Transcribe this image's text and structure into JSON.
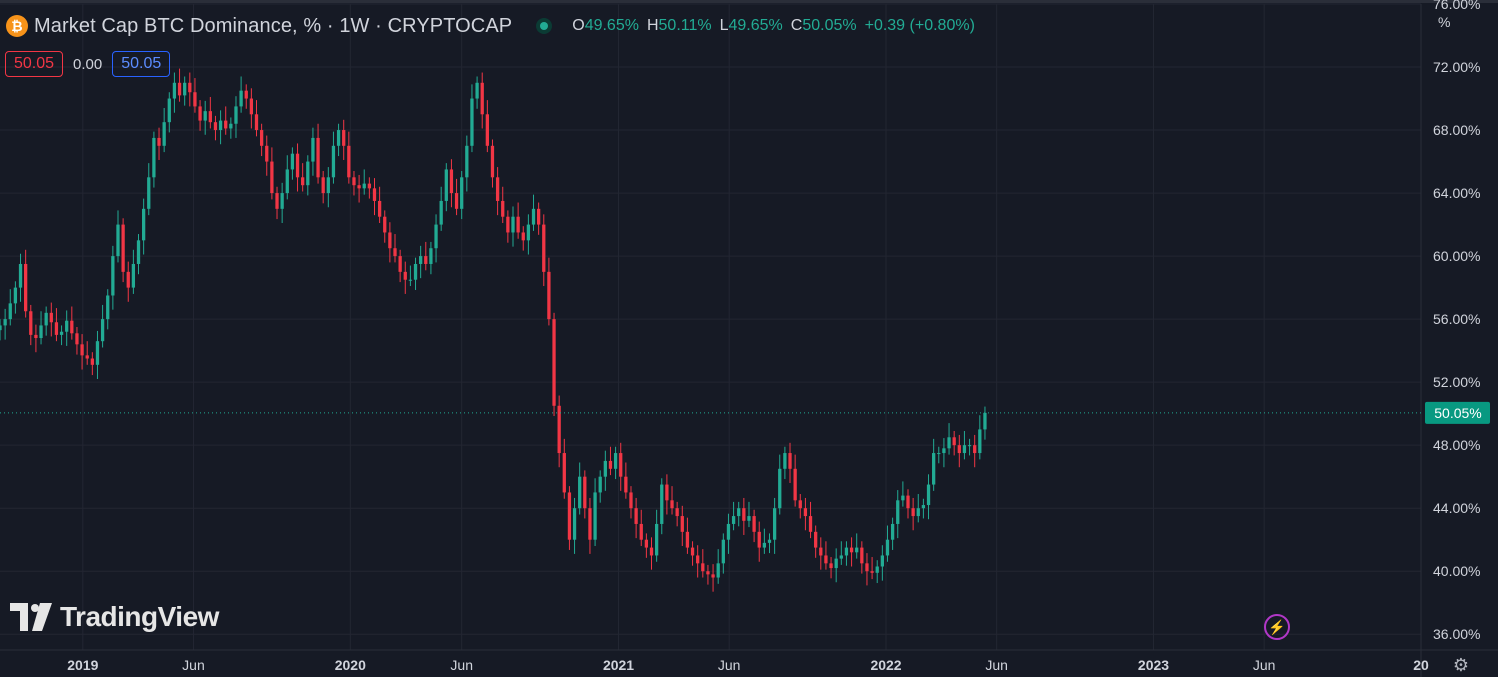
{
  "header": {
    "title": "Market Cap BTC Dominance, % · 1W · CRYPTOCAP",
    "btc_icon_glyph": "₿",
    "o_label": "O",
    "o_value": "49.65%",
    "h_label": "H",
    "h_value": "50.11%",
    "l_label": "L",
    "l_value": "49.65%",
    "c_label": "C",
    "c_value": "50.05%",
    "change": "+0.39 (+0.80%)"
  },
  "subrow": {
    "sell": "50.05",
    "spread": "0.00",
    "buy": "50.05"
  },
  "unit_label": "%",
  "branding": {
    "logo_text": "TradingView"
  },
  "icons": {
    "bolt": "bolt-icon",
    "settings": "gear-icon"
  },
  "colors": {
    "up": "#22ab94",
    "down": "#f23645",
    "background": "#161a25",
    "grid": "#232632",
    "axis_text": "#d1d4dc",
    "last_price_bg": "#089981"
  },
  "chart_data": {
    "type": "candlestick",
    "title": "Market Cap BTC Dominance, % · 1W · CRYPTOCAP",
    "timeframe": "1W",
    "ylim": [
      35,
      76
    ],
    "y_ticks": [
      {
        "v": 36,
        "label": "36.00%"
      },
      {
        "v": 40,
        "label": "40.00%"
      },
      {
        "v": 44,
        "label": "44.00%"
      },
      {
        "v": 48,
        "label": "48.00%"
      },
      {
        "v": 52,
        "label": "52.00%"
      },
      {
        "v": 56,
        "label": "56.00%"
      },
      {
        "v": 60,
        "label": "60.00%"
      },
      {
        "v": 64,
        "label": "64.00%"
      },
      {
        "v": 68,
        "label": "68.00%"
      },
      {
        "v": 72,
        "label": "72.00%"
      },
      {
        "v": 76,
        "label": "76.00%"
      }
    ],
    "x_ticks": [
      {
        "date": "2019-01-01",
        "label": "2019",
        "bold": true
      },
      {
        "date": "2019-06-01",
        "label": "Jun",
        "bold": false
      },
      {
        "date": "2020-01-01",
        "label": "2020",
        "bold": true
      },
      {
        "date": "2020-06-01",
        "label": "Jun",
        "bold": false
      },
      {
        "date": "2021-01-01",
        "label": "2021",
        "bold": true
      },
      {
        "date": "2021-06-01",
        "label": "Jun",
        "bold": false
      },
      {
        "date": "2022-01-01",
        "label": "2022",
        "bold": true
      },
      {
        "date": "2022-06-01",
        "label": "Jun",
        "bold": false
      },
      {
        "date": "2023-01-01",
        "label": "2023",
        "bold": true
      },
      {
        "date": "2023-06-01",
        "label": "Jun",
        "bold": false
      },
      {
        "date": "2024-01-01",
        "label": "20",
        "bold": true
      }
    ],
    "last_price": {
      "value": 50.05,
      "label": "50.05%"
    },
    "x_range": [
      "2018-09-10",
      "2024-01-01"
    ],
    "grid": true,
    "series": [
      {
        "ohlc_weekly_start": "2018-09-10",
        "closes": [
          55.6,
          56.0,
          57.0,
          58.0,
          59.5,
          56.5,
          55.0,
          54.8,
          55.6,
          56.4,
          55.8,
          55.0,
          55.2,
          55.9,
          55.1,
          54.4,
          53.7,
          53.5,
          53.1,
          54.6,
          56.0,
          57.5,
          60.0,
          62.0,
          59.0,
          58.0,
          59.5,
          61.0,
          63.0,
          65.0,
          67.5,
          67.0,
          68.5,
          70.0,
          71.0,
          70.2,
          71.0,
          70.4,
          69.5,
          68.6,
          69.2,
          68.5,
          68.0,
          68.6,
          68.1,
          68.4,
          69.5,
          70.5,
          70.0,
          69.0,
          68.0,
          67.0,
          66.0,
          64.0,
          63.0,
          64.0,
          65.5,
          66.5,
          65.0,
          64.5,
          66.0,
          67.5,
          65.0,
          64.0,
          65.0,
          67.0,
          68.0,
          67.0,
          65.0,
          64.5,
          64.3,
          64.6,
          64.3,
          63.5,
          62.5,
          61.5,
          60.5,
          60.0,
          59.0,
          58.5,
          58.5,
          59.5,
          60.0,
          59.5,
          60.5,
          62.0,
          63.5,
          65.5,
          64.0,
          63.0,
          65.0,
          67.0,
          70.0,
          71.0,
          69.0,
          67.0,
          65.0,
          63.5,
          62.5,
          61.5,
          62.5,
          61.5,
          61.0,
          62.0,
          63.0,
          62.0,
          59.0,
          56.0,
          50.5,
          47.5,
          45.0,
          42.0,
          44.0,
          46.0,
          44.0,
          42.0,
          45.0,
          46.0,
          47.0,
          46.5,
          47.5,
          46.0,
          45.0,
          44.0,
          43.0,
          42.0,
          41.5,
          41.0,
          43.0,
          45.5,
          44.5,
          44.0,
          43.5,
          42.5,
          41.5,
          41.0,
          40.5,
          40.0,
          39.8,
          39.6,
          40.5,
          42.0,
          43.0,
          43.5,
          44.0,
          43.2,
          43.5,
          42.5,
          41.5,
          41.8,
          42.0,
          44.0,
          46.5,
          47.5,
          46.5,
          44.5,
          44.0,
          43.5,
          42.5,
          41.5,
          41.0,
          40.5,
          40.2,
          40.8,
          41.0,
          41.5,
          41.2,
          41.5,
          40.5,
          40.0,
          39.9,
          40.3,
          41.0,
          42.0,
          43.0,
          44.5,
          44.8,
          44.0,
          43.5,
          44.0,
          44.2,
          45.5,
          47.5,
          47.5,
          47.8,
          48.5,
          48.0,
          47.5,
          48.0,
          48.0,
          47.5,
          49.0,
          50.05
        ]
      }
    ]
  }
}
